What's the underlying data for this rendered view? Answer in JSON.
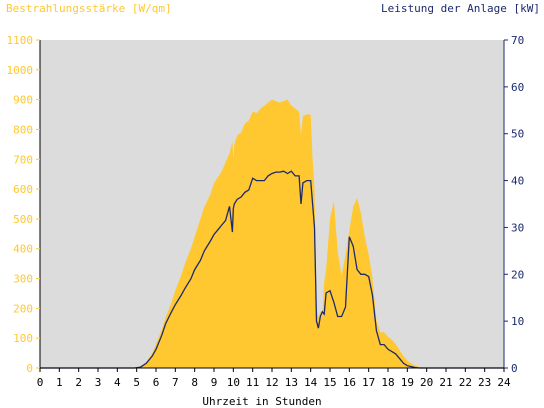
{
  "chart_data": {
    "type": "area",
    "left_axis_title": "Bestrahlungsstärke [W/qm]",
    "right_axis_title": "Leistung der Anlage [kW]",
    "xlabel": "Uhrzeit in Stunden",
    "xlim": [
      0,
      24
    ],
    "xticks": [
      "0",
      "1",
      "2",
      "3",
      "4",
      "5",
      "6",
      "7",
      "8",
      "9",
      "10",
      "11",
      "12",
      "13",
      "14",
      "15",
      "16",
      "17",
      "18",
      "19",
      "20",
      "21",
      "22",
      "23",
      "24"
    ],
    "left_ylim": [
      0,
      1100
    ],
    "left_yticks": [
      "0",
      "100",
      "200",
      "300",
      "400",
      "500",
      "600",
      "700",
      "800",
      "900",
      "1000",
      "1100"
    ],
    "right_ylim": [
      0,
      70
    ],
    "right_yticks": [
      "0",
      "10",
      "20",
      "30",
      "40",
      "50",
      "60",
      "70"
    ],
    "grid": false,
    "colors": {
      "plot_bg": "#dcdcdc",
      "irradiance": "#ffc830",
      "power": "#1c2a6e",
      "left_axis": "#ffc830",
      "right_axis": "#1c2a6e"
    },
    "series": [
      {
        "name": "Bestrahlungsstärke",
        "axis": "left",
        "style": "area",
        "x": [
          0,
          4.9,
          5.2,
          5.5,
          5.8,
          6.0,
          6.3,
          6.5,
          6.8,
          7.0,
          7.3,
          7.5,
          7.8,
          8.0,
          8.3,
          8.5,
          8.8,
          9.0,
          9.2,
          9.4,
          9.6,
          9.8,
          9.95,
          10.0,
          10.05,
          10.2,
          10.4,
          10.6,
          10.8,
          11.0,
          11.2,
          11.4,
          11.6,
          11.8,
          12.0,
          12.2,
          12.4,
          12.6,
          12.8,
          13.0,
          13.2,
          13.4,
          13.5,
          13.6,
          13.8,
          14.0,
          14.1,
          14.2,
          14.3,
          14.4,
          14.5,
          14.6,
          14.7,
          14.8,
          15.0,
          15.2,
          15.4,
          15.6,
          15.8,
          16.0,
          16.2,
          16.4,
          16.6,
          16.8,
          17.0,
          17.2,
          17.4,
          17.6,
          17.8,
          18.0,
          18.2,
          18.4,
          18.6,
          18.8,
          19.0,
          19.2,
          19.4,
          19.6,
          19.8,
          20.0,
          20.2,
          20.5,
          24
        ],
        "values": [
          0,
          0,
          5,
          20,
          50,
          80,
          130,
          170,
          220,
          260,
          310,
          350,
          400,
          440,
          500,
          540,
          580,
          620,
          640,
          660,
          690,
          720,
          760,
          700,
          750,
          780,
          790,
          820,
          830,
          860,
          855,
          870,
          880,
          890,
          900,
          895,
          890,
          895,
          900,
          880,
          870,
          860,
          780,
          845,
          850,
          850,
          700,
          600,
          200,
          170,
          190,
          170,
          290,
          330,
          500,
          560,
          390,
          310,
          380,
          460,
          540,
          570,
          520,
          440,
          380,
          300,
          160,
          120,
          120,
          105,
          95,
          80,
          60,
          40,
          25,
          15,
          8,
          4,
          2,
          1,
          0,
          0,
          0
        ]
      },
      {
        "name": "Leistung",
        "axis": "right",
        "style": "line",
        "x": [
          0,
          4.9,
          5.2,
          5.5,
          5.8,
          6.0,
          6.3,
          6.5,
          6.8,
          7.0,
          7.3,
          7.5,
          7.8,
          8.0,
          8.3,
          8.5,
          8.8,
          9.0,
          9.2,
          9.4,
          9.6,
          9.8,
          9.95,
          10.0,
          10.05,
          10.2,
          10.4,
          10.6,
          10.8,
          11.0,
          11.2,
          11.4,
          11.6,
          11.8,
          12.0,
          12.2,
          12.4,
          12.6,
          12.8,
          13.0,
          13.2,
          13.4,
          13.5,
          13.6,
          13.8,
          14.0,
          14.1,
          14.2,
          14.3,
          14.4,
          14.5,
          14.6,
          14.7,
          14.8,
          15.0,
          15.2,
          15.4,
          15.6,
          15.8,
          16.0,
          16.2,
          16.4,
          16.6,
          16.8,
          17.0,
          17.2,
          17.4,
          17.6,
          17.8,
          18.0,
          18.2,
          18.4,
          18.6,
          18.8,
          19.0,
          19.2,
          19.4,
          19.6,
          19.8,
          20.0,
          20.2,
          20.5,
          24
        ],
        "values": [
          0,
          0,
          0.2,
          1,
          2.5,
          4,
          7,
          9.5,
          12,
          13.5,
          15.5,
          17,
          19,
          21,
          23,
          25,
          27,
          28.5,
          29.5,
          30.5,
          31.5,
          34.5,
          29,
          34,
          35,
          36,
          36.5,
          37.5,
          38,
          40.5,
          40,
          40,
          40,
          41,
          41.5,
          41.8,
          41.8,
          42,
          41.5,
          42,
          41,
          41,
          35,
          39.5,
          40,
          40,
          35,
          30,
          10,
          8.5,
          11,
          12,
          11.5,
          16,
          16.5,
          14,
          11,
          11,
          13,
          28,
          26,
          21,
          20,
          20,
          19.5,
          15.5,
          8,
          5,
          5,
          4,
          3.5,
          3,
          2,
          1,
          0.5,
          0.3,
          0.1,
          0,
          0,
          0,
          0,
          0,
          0
        ]
      }
    ]
  }
}
